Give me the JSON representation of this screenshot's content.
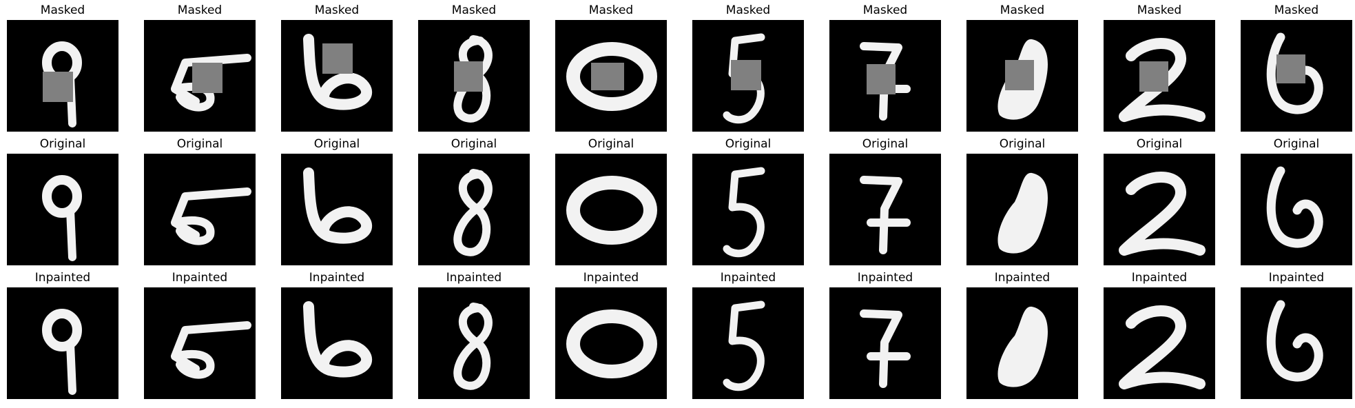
{
  "row_titles": [
    "Masked",
    "Original",
    "Inpainted"
  ],
  "digits": [
    "9",
    "5",
    "6",
    "8",
    "0",
    "5",
    "7",
    "0",
    "2",
    "6"
  ],
  "colors": {
    "tile_background": "#000000",
    "stroke": "#f2f2f2",
    "mask": "#808080"
  }
}
